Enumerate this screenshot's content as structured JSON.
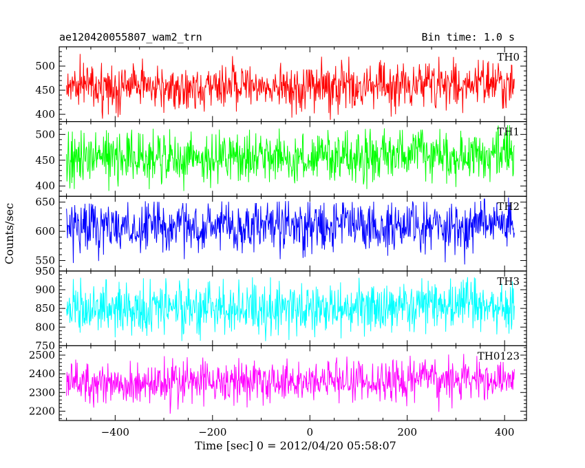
{
  "header": {
    "left_title": "ae120420055807_wam2_trn",
    "right_title": "Bin time: 1.0 s"
  },
  "chart_data": {
    "type": "line",
    "title": "ae120420055807_wam2_trn",
    "subtitle": "Bin time: 1.0 s",
    "xlabel": "Time [sec] 0 = 2012/04/20 05:58:07",
    "ylabel": "Counts/sec",
    "xlim": [
      -515,
      445
    ],
    "x_ticks": [
      -400,
      -200,
      0,
      200,
      400
    ],
    "x_tick_labels": [
      "−400",
      "−200",
      "0",
      "200",
      "400"
    ],
    "x_data_range": [
      -500,
      420
    ],
    "grid": false,
    "panels": [
      {
        "series": "TH0",
        "color": "#ff0000",
        "ylim": [
          385,
          540
        ],
        "yticks": [
          400,
          450,
          500
        ],
        "mean": 455,
        "noise_sd": 24,
        "trend_end": 8,
        "tops": [
          [
            -500,
            528
          ],
          [
            -450,
            523
          ],
          [
            -400,
            520
          ],
          [
            -350,
            518
          ],
          [
            -300,
            522
          ],
          [
            -250,
            520
          ],
          [
            -200,
            515
          ],
          [
            -150,
            522
          ],
          [
            -100,
            522
          ],
          [
            -60,
            548
          ],
          [
            -20,
            520
          ],
          [
            0,
            520
          ],
          [
            40,
            542
          ],
          [
            80,
            520
          ],
          [
            120,
            522
          ],
          [
            160,
            520
          ],
          [
            200,
            522
          ],
          [
            250,
            518
          ],
          [
            300,
            522
          ],
          [
            350,
            526
          ],
          [
            400,
            530
          ],
          [
            420,
            530
          ]
        ],
        "bottoms": [
          [
            -500,
            392
          ],
          [
            -450,
            390
          ],
          [
            -400,
            392
          ],
          [
            -350,
            390
          ],
          [
            -300,
            395
          ],
          [
            -250,
            390
          ],
          [
            -200,
            392
          ],
          [
            -150,
            390
          ],
          [
            -100,
            388
          ],
          [
            -50,
            392
          ],
          [
            0,
            390
          ],
          [
            50,
            388
          ],
          [
            100,
            390
          ],
          [
            150,
            395
          ],
          [
            200,
            392
          ],
          [
            250,
            390
          ],
          [
            300,
            395
          ],
          [
            350,
            395
          ],
          [
            400,
            398
          ],
          [
            420,
            398
          ]
        ]
      },
      {
        "series": "TH1",
        "color": "#00ff00",
        "ylim": [
          380,
          525
        ],
        "yticks": [
          400,
          450,
          500
        ],
        "mean": 453,
        "noise_sd": 25,
        "trend_end": 8,
        "tops": [
          [
            -500,
            505
          ],
          [
            -450,
            510
          ],
          [
            -400,
            507
          ],
          [
            -350,
            510
          ],
          [
            -300,
            512
          ],
          [
            -250,
            505
          ],
          [
            -200,
            510
          ],
          [
            -150,
            508
          ],
          [
            -100,
            510
          ],
          [
            -50,
            512
          ],
          [
            0,
            510
          ],
          [
            50,
            508
          ],
          [
            100,
            510
          ],
          [
            150,
            512
          ],
          [
            200,
            508
          ],
          [
            250,
            510
          ],
          [
            300,
            512
          ],
          [
            350,
            515
          ],
          [
            400,
            518
          ],
          [
            420,
            518
          ]
        ],
        "bottoms": [
          [
            -500,
            395
          ],
          [
            -450,
            392
          ],
          [
            -400,
            390
          ],
          [
            -350,
            395
          ],
          [
            -300,
            392
          ],
          [
            -250,
            390
          ],
          [
            -200,
            385
          ],
          [
            -150,
            395
          ],
          [
            -100,
            392
          ],
          [
            -50,
            395
          ],
          [
            0,
            390
          ],
          [
            50,
            392
          ],
          [
            100,
            395
          ],
          [
            150,
            392
          ],
          [
            200,
            390
          ],
          [
            250,
            395
          ],
          [
            300,
            398
          ],
          [
            350,
            400
          ],
          [
            400,
            402
          ],
          [
            420,
            402
          ]
        ]
      },
      {
        "series": "TH2",
        "color": "#0000ff",
        "ylim": [
          532,
          660
        ],
        "yticks": [
          550,
          600,
          650
        ],
        "mean": 607,
        "noise_sd": 21,
        "trend_end": 3,
        "tops": [
          [
            -500,
            655
          ],
          [
            -450,
            650
          ],
          [
            -400,
            648
          ],
          [
            -350,
            652
          ],
          [
            -300,
            650
          ],
          [
            -250,
            648
          ],
          [
            -200,
            652
          ],
          [
            -150,
            650
          ],
          [
            -100,
            648
          ],
          [
            -50,
            652
          ],
          [
            0,
            650
          ],
          [
            50,
            648
          ],
          [
            100,
            652
          ],
          [
            150,
            650
          ],
          [
            200,
            652
          ],
          [
            250,
            650
          ],
          [
            300,
            652
          ],
          [
            350,
            655
          ],
          [
            400,
            658
          ],
          [
            420,
            658
          ]
        ],
        "bottoms": [
          [
            -500,
            548
          ],
          [
            -450,
            540
          ],
          [
            -400,
            545
          ],
          [
            -350,
            545
          ],
          [
            -300,
            548
          ],
          [
            -250,
            540
          ],
          [
            -200,
            542
          ],
          [
            -150,
            545
          ],
          [
            -100,
            540
          ],
          [
            -50,
            545
          ],
          [
            0,
            540
          ],
          [
            50,
            545
          ],
          [
            100,
            542
          ],
          [
            150,
            538
          ],
          [
            200,
            545
          ],
          [
            250,
            548
          ],
          [
            300,
            545
          ],
          [
            350,
            540
          ],
          [
            400,
            542
          ],
          [
            420,
            545
          ]
        ]
      },
      {
        "series": "TH3",
        "color": "#00ffff",
        "ylim": [
          750,
          950
        ],
        "yticks": [
          750,
          800,
          850,
          900,
          950
        ],
        "mean": 847,
        "noise_sd": 33,
        "trend_end": 10,
        "tops": [
          [
            -500,
            935
          ],
          [
            -450,
            930
          ],
          [
            -400,
            925
          ],
          [
            -350,
            930
          ],
          [
            -300,
            935
          ],
          [
            -250,
            930
          ],
          [
            -200,
            928
          ],
          [
            -150,
            930
          ],
          [
            -100,
            935
          ],
          [
            -50,
            930
          ],
          [
            0,
            925
          ],
          [
            50,
            930
          ],
          [
            100,
            935
          ],
          [
            150,
            930
          ],
          [
            200,
            932
          ],
          [
            250,
            930
          ],
          [
            300,
            935
          ],
          [
            350,
            932
          ],
          [
            400,
            940
          ],
          [
            420,
            940
          ]
        ],
        "bottoms": [
          [
            -500,
            762
          ],
          [
            -450,
            760
          ],
          [
            -400,
            765
          ],
          [
            -350,
            768
          ],
          [
            -300,
            765
          ],
          [
            -250,
            762
          ],
          [
            -200,
            765
          ],
          [
            -150,
            768
          ],
          [
            -100,
            762
          ],
          [
            -50,
            765
          ],
          [
            0,
            768
          ],
          [
            50,
            765
          ],
          [
            100,
            762
          ],
          [
            150,
            765
          ],
          [
            200,
            768
          ],
          [
            250,
            765
          ],
          [
            300,
            768
          ],
          [
            350,
            770
          ],
          [
            400,
            772
          ],
          [
            420,
            772
          ]
        ]
      },
      {
        "series": "TH0123",
        "color": "#ff00ff",
        "ylim": [
          2150,
          2550
        ],
        "yticks": [
          2200,
          2300,
          2400,
          2500
        ],
        "mean": 2345,
        "noise_sd": 55,
        "trend_end": 30,
        "tops": [
          [
            -500,
            2495
          ],
          [
            -450,
            2490
          ],
          [
            -400,
            2500
          ],
          [
            -350,
            2510
          ],
          [
            -300,
            2495
          ],
          [
            -250,
            2500
          ],
          [
            -200,
            2520
          ],
          [
            -150,
            2510
          ],
          [
            -100,
            2490
          ],
          [
            -50,
            2500
          ],
          [
            0,
            2515
          ],
          [
            50,
            2495
          ],
          [
            100,
            2500
          ],
          [
            150,
            2505
          ],
          [
            200,
            2495
          ],
          [
            250,
            2510
          ],
          [
            300,
            2500
          ],
          [
            350,
            2520
          ],
          [
            400,
            2530
          ],
          [
            420,
            2530
          ]
        ],
        "bottoms": [
          [
            -500,
            2180
          ],
          [
            -450,
            2185
          ],
          [
            -400,
            2180
          ],
          [
            -350,
            2190
          ],
          [
            -300,
            2185
          ],
          [
            -250,
            2190
          ],
          [
            -200,
            2180
          ],
          [
            -150,
            2185
          ],
          [
            -100,
            2180
          ],
          [
            -50,
            2190
          ],
          [
            0,
            2185
          ],
          [
            50,
            2170
          ],
          [
            100,
            2180
          ],
          [
            150,
            2185
          ],
          [
            200,
            2190
          ],
          [
            250,
            2195
          ],
          [
            300,
            2200
          ],
          [
            350,
            2205
          ],
          [
            400,
            2210
          ],
          [
            420,
            2210
          ]
        ]
      }
    ]
  }
}
